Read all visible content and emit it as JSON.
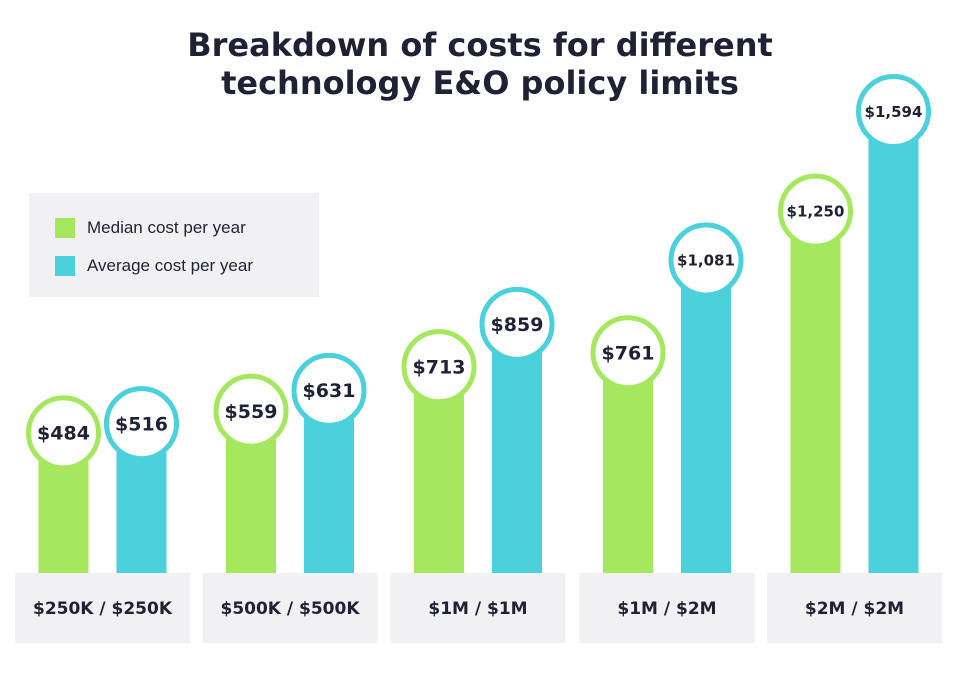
{
  "chart_data": {
    "type": "bar",
    "title_line1": "Breakdown of costs for different",
    "title_line2": "technology E&O policy limits",
    "categories": [
      "$250K / $250K",
      "$500K / $500K",
      "$1M / $1M",
      "$1M / $2M",
      "$2M / $2M"
    ],
    "series": [
      {
        "name": "Median cost per year",
        "color": "#a5e85e",
        "values": [
          484,
          559,
          713,
          761,
          1250
        ],
        "labels": [
          "$484",
          "$559",
          "$713",
          "$761",
          "$1,250"
        ]
      },
      {
        "name": "Average cost per year",
        "color": "#4ad1dc",
        "values": [
          516,
          631,
          859,
          1081,
          1594
        ],
        "labels": [
          "$516",
          "$631",
          "$859",
          "$1,081",
          "$1,594"
        ]
      }
    ],
    "legend_position": "top-left",
    "grid": false
  }
}
